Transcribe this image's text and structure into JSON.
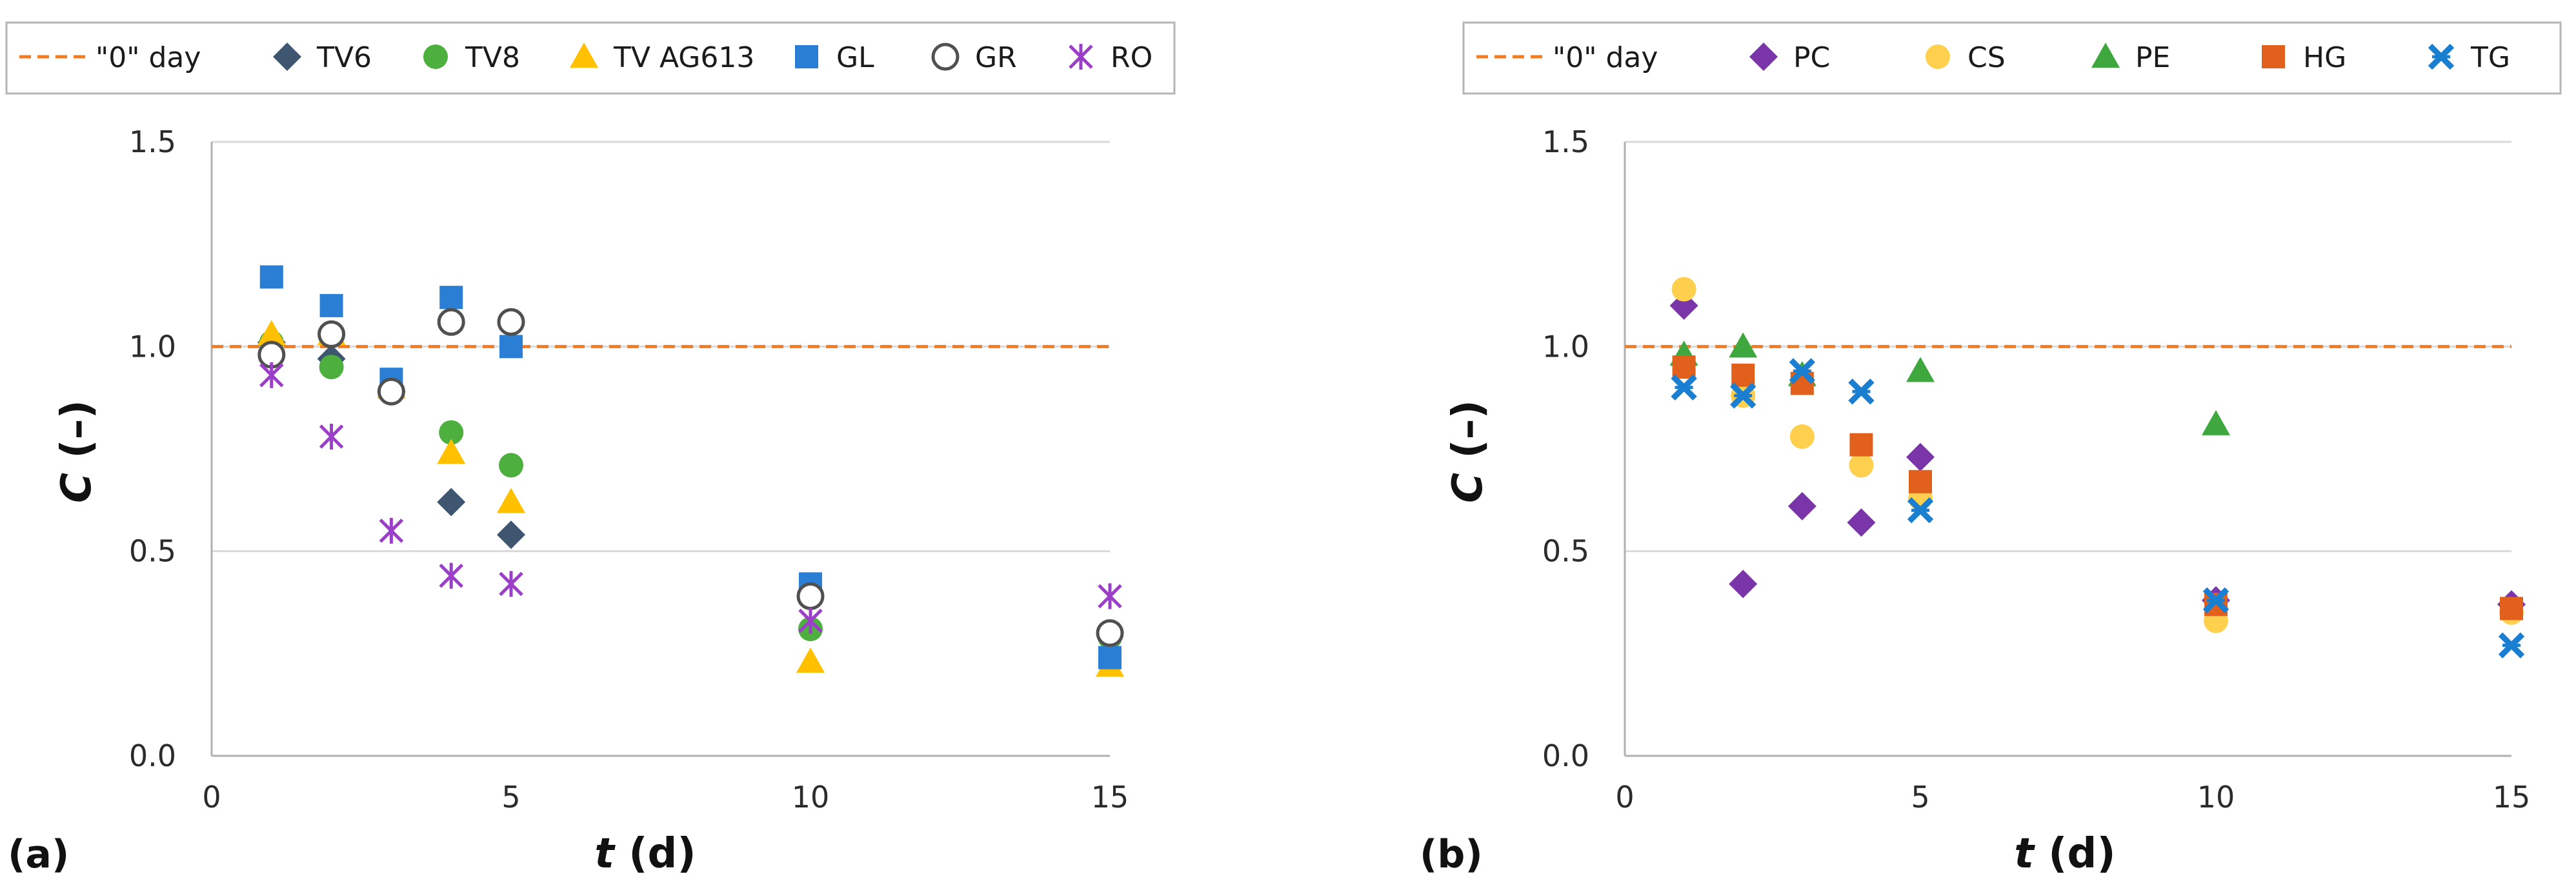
{
  "chart_data": [
    {
      "panel": "(a)",
      "type": "scatter",
      "xlabel": "(d)",
      "xlabel_var": "t",
      "ylabel": "(–)",
      "ylabel_var": "C",
      "xlim": [
        0,
        15
      ],
      "ylim": [
        0,
        1.5
      ],
      "xticks": [
        0,
        5,
        10,
        15
      ],
      "yticks": [
        "0.0",
        "0.5",
        "1.0",
        "1.5"
      ],
      "grid": true,
      "legend_position": "top",
      "reference_line": {
        "name": "\"0\" day",
        "y": 1.0,
        "color": "#f47c20"
      },
      "series": [
        {
          "name": "TV6",
          "marker": "diamond",
          "color": "#3e5670",
          "x": [
            1,
            2,
            3,
            4,
            5
          ],
          "y": [
            1.01,
            0.97,
            0.89,
            0.62,
            0.54
          ]
        },
        {
          "name": "TV8",
          "marker": "circle",
          "color": "#4caf3e",
          "x": [
            1,
            2,
            3,
            4,
            5,
            10,
            15
          ],
          "y": [
            1.01,
            0.95,
            0.89,
            0.79,
            0.71,
            0.31,
            0.29
          ]
        },
        {
          "name": "TV AG613",
          "marker": "triangle",
          "color": "#ffc000",
          "x": [
            1,
            2,
            3,
            4,
            5,
            10,
            15
          ],
          "y": [
            1.03,
            1.03,
            0.9,
            0.74,
            0.62,
            0.23,
            0.22
          ]
        },
        {
          "name": "GL",
          "marker": "square",
          "color": "#2a7fd4",
          "x": [
            1,
            2,
            3,
            4,
            5,
            10,
            15
          ],
          "y": [
            1.17,
            1.1,
            0.92,
            1.12,
            1.0,
            0.42,
            0.24
          ]
        },
        {
          "name": "GR",
          "marker": "open-circle",
          "color": "#505050",
          "x": [
            1,
            2,
            3,
            4,
            5,
            10,
            15
          ],
          "y": [
            0.98,
            1.03,
            0.89,
            1.06,
            1.06,
            0.39,
            0.3
          ]
        },
        {
          "name": "RO",
          "marker": "asterisk",
          "color": "#9b3fc8",
          "x": [
            1,
            2,
            3,
            4,
            5,
            10,
            15
          ],
          "y": [
            0.93,
            0.78,
            0.55,
            0.44,
            0.42,
            0.33,
            0.39
          ]
        }
      ]
    },
    {
      "panel": "(b)",
      "type": "scatter",
      "xlabel": "(d)",
      "xlabel_var": "t",
      "ylabel": "(–)",
      "ylabel_var": "C",
      "xlim": [
        0,
        15
      ],
      "ylim": [
        0,
        1.5
      ],
      "xticks": [
        0,
        5,
        10,
        15
      ],
      "yticks": [
        "0.0",
        "0.5",
        "1.0",
        "1.5"
      ],
      "grid": true,
      "legend_position": "top",
      "reference_line": {
        "name": "\"0\" day",
        "y": 1.0,
        "color": "#f47c20"
      },
      "series": [
        {
          "name": "PC",
          "marker": "diamond",
          "color": "#7a35a8",
          "x": [
            1,
            2,
            3,
            4,
            5,
            10,
            15
          ],
          "y": [
            1.1,
            0.42,
            0.61,
            0.57,
            0.73,
            0.38,
            0.37
          ]
        },
        {
          "name": "CS",
          "marker": "circle",
          "color": "#ffd04d",
          "x": [
            1,
            2,
            3,
            4,
            5,
            10,
            15
          ],
          "y": [
            1.14,
            0.88,
            0.78,
            0.71,
            0.63,
            0.33,
            0.35
          ]
        },
        {
          "name": "PE",
          "marker": "triangle",
          "color": "#3ea83e",
          "x": [
            1,
            2,
            3,
            5,
            10
          ],
          "y": [
            0.98,
            1.0,
            0.93,
            0.94,
            0.81
          ]
        },
        {
          "name": "HG",
          "marker": "square",
          "color": "#e0601c",
          "x": [
            1,
            2,
            3,
            4,
            5,
            10,
            15
          ],
          "y": [
            0.95,
            0.93,
            0.91,
            0.76,
            0.67,
            0.37,
            0.36
          ]
        },
        {
          "name": "TG",
          "marker": "star-x",
          "color": "#1a7fd0",
          "x": [
            1,
            2,
            3,
            4,
            5,
            10,
            15
          ],
          "y": [
            0.9,
            0.88,
            0.94,
            0.89,
            0.6,
            0.38,
            0.27
          ]
        }
      ]
    }
  ]
}
